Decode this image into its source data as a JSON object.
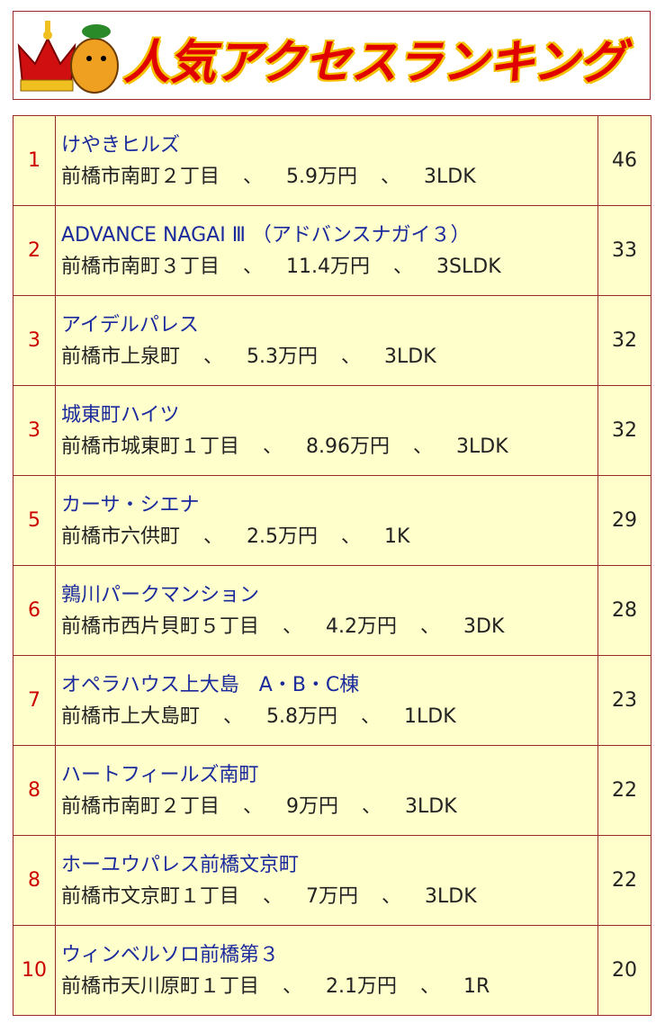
{
  "header": {
    "title": "人気アクセスランキング"
  },
  "separator": "、",
  "table": {
    "rows": [
      {
        "rank": 1,
        "name": "けやきヒルズ",
        "address": "前橋市南町２丁目",
        "price": "5.9万円",
        "layout": "3LDK",
        "count": 46
      },
      {
        "rank": 2,
        "name": "ADVANCE NAGAI Ⅲ （アドバンスナガイ３）",
        "address": "前橋市南町３丁目",
        "price": "11.4万円",
        "layout": "3SLDK",
        "count": 33
      },
      {
        "rank": 3,
        "name": "アイデルパレス",
        "address": "前橋市上泉町",
        "price": "5.3万円",
        "layout": "3LDK",
        "count": 32
      },
      {
        "rank": 3,
        "name": "城東町ハイツ",
        "address": "前橋市城東町１丁目",
        "price": "8.96万円",
        "layout": "3LDK",
        "count": 32
      },
      {
        "rank": 5,
        "name": "カーサ・シエナ",
        "address": "前橋市六供町",
        "price": "2.5万円",
        "layout": "1K",
        "count": 29
      },
      {
        "rank": 6,
        "name": "鶉川パークマンション",
        "address": "前橋市西片貝町５丁目",
        "price": "4.2万円",
        "layout": "3DK",
        "count": 28
      },
      {
        "rank": 7,
        "name": "オペラハウス上大島　A・B・C棟",
        "address": "前橋市上大島町",
        "price": "5.8万円",
        "layout": "1LDK",
        "count": 23
      },
      {
        "rank": 8,
        "name": "ハートフィールズ南町",
        "address": "前橋市南町２丁目",
        "price": "9万円",
        "layout": "3LDK",
        "count": 22
      },
      {
        "rank": 8,
        "name": "ホーユウパレス前橋文京町",
        "address": "前橋市文京町１丁目",
        "price": "7万円",
        "layout": "3LDK",
        "count": 22
      },
      {
        "rank": 10,
        "name": "ウィンベルソロ前橋第３",
        "address": "前橋市天川原町１丁目",
        "price": "2.1万円",
        "layout": "1R",
        "count": 20
      }
    ]
  }
}
